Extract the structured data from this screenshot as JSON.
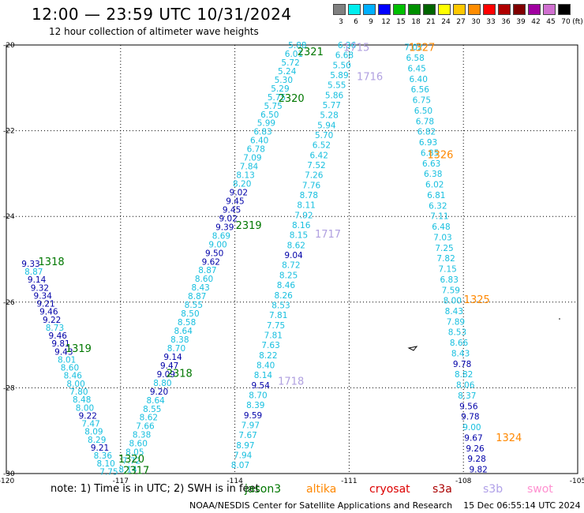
{
  "title": "12:00 — 23:59 UTC 10/31/2024",
  "subtitle": "12 hour collection of altimeter wave heights",
  "legend": {
    "unit": "(ft)",
    "bins": [
      {
        "label": "3",
        "color": "#808080"
      },
      {
        "label": "6",
        "color": "#00eeee"
      },
      {
        "label": "9",
        "color": "#00b0ff"
      },
      {
        "label": "12",
        "color": "#0000ff"
      },
      {
        "label": "15",
        "color": "#00c000"
      },
      {
        "label": "18",
        "color": "#009000"
      },
      {
        "label": "21",
        "color": "#006400"
      },
      {
        "label": "24",
        "color": "#ffff00"
      },
      {
        "label": "27",
        "color": "#ffc800"
      },
      {
        "label": "30",
        "color": "#ff8c00"
      },
      {
        "label": "33",
        "color": "#ff0000"
      },
      {
        "label": "36",
        "color": "#b00000"
      },
      {
        "label": "39",
        "color": "#800000"
      },
      {
        "label": "42",
        "color": "#a000a0"
      },
      {
        "label": "45",
        "color": "#d070d0"
      },
      {
        "label": "70",
        "color": "#000000"
      }
    ]
  },
  "colors": {
    "cyan": "#17bfdf",
    "blue": "#0000a8",
    "green": "#007700",
    "orange": "#ff8800",
    "lavender": "#b0a0e0",
    "red": "#dd0000",
    "darkred": "#aa0000",
    "s3b": "#b0a0e8",
    "swot": "#ff90d0"
  },
  "axes": {
    "lon_min": -120,
    "lon_max": -105,
    "lat_min": -30,
    "lat_max": -20,
    "x_ticks": [
      "-120",
      "-117",
      "-114",
      "-111",
      "-108",
      "-105"
    ],
    "y_ticks": [
      "-20",
      "-22",
      "-24",
      "-26",
      "-28",
      "-30"
    ],
    "grid": true
  },
  "footnote": "note:  1) Time is in UTC; 2) SWH is in feet",
  "satellites": [
    {
      "name": "jason3",
      "color": "#007700"
    },
    {
      "name": "altika",
      "color": "#ff8800"
    },
    {
      "name": "cryosat",
      "color": "#dd0000"
    },
    {
      "name": "s3a",
      "color": "#aa0000"
    },
    {
      "name": "s3b",
      "color": "#b0a0e8"
    },
    {
      "name": "swot",
      "color": "#ff90d0"
    }
  ],
  "credit": "NOAA/NESDIS Center for Satellite Applications and Research    15 Dec 06:55:14 UTC 2024",
  "map_data": {
    "pass_labels": [
      {
        "text": "1318",
        "lon": -119.16,
        "lat": -25.05,
        "color": "green"
      },
      {
        "text": "1319",
        "lon": -118.45,
        "lat": -27.07,
        "color": "green"
      },
      {
        "text": "1320",
        "lon": -117.06,
        "lat": -29.65,
        "color": "green"
      },
      {
        "text": "2317",
        "lon": -116.93,
        "lat": -29.92,
        "color": "green"
      },
      {
        "text": "2318",
        "lon": -115.8,
        "lat": -27.65,
        "color": "green"
      },
      {
        "text": "2319",
        "lon": -113.98,
        "lat": -24.2,
        "color": "green"
      },
      {
        "text": "2320",
        "lon": -112.86,
        "lat": -21.23,
        "color": "green"
      },
      {
        "text": "2321",
        "lon": -112.36,
        "lat": -20.15,
        "color": "green"
      },
      {
        "text": "1715",
        "lon": -111.15,
        "lat": -20.05,
        "color": "lavender"
      },
      {
        "text": "1716",
        "lon": -110.8,
        "lat": -20.73,
        "color": "lavender"
      },
      {
        "text": "1717",
        "lon": -111.9,
        "lat": -24.4,
        "color": "lavender"
      },
      {
        "text": "1718",
        "lon": -112.87,
        "lat": -27.84,
        "color": "lavender"
      },
      {
        "text": "1327",
        "lon": -109.43,
        "lat": -20.05,
        "color": "orange"
      },
      {
        "text": "1326",
        "lon": -108.95,
        "lat": -22.55,
        "color": "orange"
      },
      {
        "text": "1325",
        "lon": -107.99,
        "lat": -25.93,
        "color": "orange"
      },
      {
        "text": "1324",
        "lon": -107.15,
        "lat": -29.15,
        "color": "orange"
      }
    ],
    "tracks": [
      {
        "name": "track-1318-1320",
        "start": {
          "lon": -119.6,
          "lat": -25.1
        },
        "end": {
          "lon": -117.55,
          "lat": -29.95
        },
        "values": [
          {
            "v": "9.33",
            "c": "blue"
          },
          {
            "v": "8.87",
            "c": "cyan"
          },
          {
            "v": "9.14",
            "c": "blue"
          },
          {
            "v": "9.32",
            "c": "blue"
          },
          {
            "v": "9.34",
            "c": "blue"
          },
          {
            "v": "9.21",
            "c": "blue"
          },
          {
            "v": "9.46",
            "c": "blue"
          },
          {
            "v": "9.22",
            "c": "blue"
          },
          {
            "v": "8.73",
            "c": "cyan"
          },
          {
            "v": "9.46",
            "c": "blue"
          },
          {
            "v": "9.81",
            "c": "blue"
          },
          {
            "v": "9.43",
            "c": "blue"
          },
          {
            "v": "8.01",
            "c": "cyan"
          },
          {
            "v": "8.60",
            "c": "cyan"
          },
          {
            "v": "8.46",
            "c": "cyan"
          },
          {
            "v": "8.00",
            "c": "cyan"
          },
          {
            "v": "7.80",
            "c": "cyan"
          },
          {
            "v": "8.48",
            "c": "cyan"
          },
          {
            "v": "8.00",
            "c": "cyan"
          },
          {
            "v": "9.22",
            "c": "blue"
          },
          {
            "v": "7.47",
            "c": "cyan"
          },
          {
            "v": "8.09",
            "c": "cyan"
          },
          {
            "v": "8.29",
            "c": "cyan"
          },
          {
            "v": "9.21",
            "c": "blue"
          },
          {
            "v": "8.36",
            "c": "cyan"
          },
          {
            "v": "8.10",
            "c": "cyan"
          },
          {
            "v": "7.75",
            "c": "cyan"
          }
        ]
      },
      {
        "name": "track-2317-2321",
        "start": {
          "lon": -117.05,
          "lat": -29.9
        },
        "end": {
          "lon": -112.6,
          "lat": -20.0
        },
        "values": [
          {
            "v": "8.14",
            "c": "cyan"
          },
          {
            "v": "7.72",
            "c": "cyan"
          },
          {
            "v": "8.05",
            "c": "cyan"
          },
          {
            "v": "8.60",
            "c": "cyan"
          },
          {
            "v": "8.38",
            "c": "cyan"
          },
          {
            "v": "7.66",
            "c": "cyan"
          },
          {
            "v": "8.62",
            "c": "cyan"
          },
          {
            "v": "8.55",
            "c": "cyan"
          },
          {
            "v": "8.64",
            "c": "cyan"
          },
          {
            "v": "9.20",
            "c": "blue"
          },
          {
            "v": "8.80",
            "c": "cyan"
          },
          {
            "v": "9.09",
            "c": "blue"
          },
          {
            "v": "9.47",
            "c": "blue"
          },
          {
            "v": "9.14",
            "c": "blue"
          },
          {
            "v": "8.70",
            "c": "cyan"
          },
          {
            "v": "8.38",
            "c": "cyan"
          },
          {
            "v": "8.64",
            "c": "cyan"
          },
          {
            "v": "8.58",
            "c": "cyan"
          },
          {
            "v": "8.50",
            "c": "cyan"
          },
          {
            "v": "8.55",
            "c": "cyan"
          },
          {
            "v": "8.87",
            "c": "cyan"
          },
          {
            "v": "8.43",
            "c": "cyan"
          },
          {
            "v": "8.60",
            "c": "cyan"
          },
          {
            "v": "8.87",
            "c": "cyan"
          },
          {
            "v": "9.62",
            "c": "blue"
          },
          {
            "v": "9.50",
            "c": "blue"
          },
          {
            "v": "9.00",
            "c": "cyan"
          },
          {
            "v": "8.69",
            "c": "cyan"
          },
          {
            "v": "9.39",
            "c": "blue"
          },
          {
            "v": "9.02",
            "c": "blue"
          },
          {
            "v": "9.45",
            "c": "blue"
          },
          {
            "v": "9.45",
            "c": "blue"
          },
          {
            "v": "9.02",
            "c": "blue"
          },
          {
            "v": "8.20",
            "c": "cyan"
          },
          {
            "v": "8.13",
            "c": "cyan"
          },
          {
            "v": "7.84",
            "c": "cyan"
          },
          {
            "v": "7.09",
            "c": "cyan"
          },
          {
            "v": "6.78",
            "c": "cyan"
          },
          {
            "v": "6.40",
            "c": "cyan"
          },
          {
            "v": "6.83",
            "c": "cyan"
          },
          {
            "v": "5.99",
            "c": "cyan"
          },
          {
            "v": "6.50",
            "c": "cyan"
          },
          {
            "v": "5.75",
            "c": "cyan"
          },
          {
            "v": "5.75",
            "c": "cyan"
          },
          {
            "v": "5.29",
            "c": "cyan"
          },
          {
            "v": "5.30",
            "c": "cyan"
          },
          {
            "v": "5.24",
            "c": "cyan"
          },
          {
            "v": "5.72",
            "c": "cyan"
          },
          {
            "v": "6.01",
            "c": "cyan"
          },
          {
            "v": "5.88",
            "c": "cyan"
          }
        ]
      },
      {
        "name": "track-1715-1718",
        "start": {
          "lon": -111.3,
          "lat": -20.0
        },
        "end": {
          "lon": -114.1,
          "lat": -29.8
        },
        "values": [
          {
            "v": "6.36",
            "c": "cyan"
          },
          {
            "v": "6.68",
            "c": "cyan"
          },
          {
            "v": "5.50",
            "c": "cyan"
          },
          {
            "v": "5.89",
            "c": "cyan"
          },
          {
            "v": "5.55",
            "c": "cyan"
          },
          {
            "v": "5.86",
            "c": "cyan"
          },
          {
            "v": "5.77",
            "c": "cyan"
          },
          {
            "v": "5.28",
            "c": "cyan"
          },
          {
            "v": "5.94",
            "c": "cyan"
          },
          {
            "v": "5.70",
            "c": "cyan"
          },
          {
            "v": "6.52",
            "c": "cyan"
          },
          {
            "v": "6.42",
            "c": "cyan"
          },
          {
            "v": "7.52",
            "c": "cyan"
          },
          {
            "v": "7.26",
            "c": "cyan"
          },
          {
            "v": "7.76",
            "c": "cyan"
          },
          {
            "v": "8.78",
            "c": "cyan"
          },
          {
            "v": "8.11",
            "c": "cyan"
          },
          {
            "v": "7.92",
            "c": "cyan"
          },
          {
            "v": "8.16",
            "c": "cyan"
          },
          {
            "v": "8.15",
            "c": "cyan"
          },
          {
            "v": "8.62",
            "c": "cyan"
          },
          {
            "v": "9.04",
            "c": "blue"
          },
          {
            "v": "8.72",
            "c": "cyan"
          },
          {
            "v": "8.25",
            "c": "cyan"
          },
          {
            "v": "8.46",
            "c": "cyan"
          },
          {
            "v": "8.26",
            "c": "cyan"
          },
          {
            "v": "8.53",
            "c": "cyan"
          },
          {
            "v": "7.81",
            "c": "cyan"
          },
          {
            "v": "7.75",
            "c": "cyan"
          },
          {
            "v": "7.81",
            "c": "cyan"
          },
          {
            "v": "7.63",
            "c": "cyan"
          },
          {
            "v": "8.22",
            "c": "cyan"
          },
          {
            "v": "8.40",
            "c": "cyan"
          },
          {
            "v": "8.14",
            "c": "cyan"
          },
          {
            "v": "9.54",
            "c": "blue"
          },
          {
            "v": "8.70",
            "c": "cyan"
          },
          {
            "v": "8.39",
            "c": "cyan"
          },
          {
            "v": "9.59",
            "c": "blue"
          },
          {
            "v": "7.97",
            "c": "cyan"
          },
          {
            "v": "7.67",
            "c": "cyan"
          },
          {
            "v": "8.97",
            "c": "cyan"
          },
          {
            "v": "7.94",
            "c": "cyan"
          },
          {
            "v": "8.07",
            "c": "cyan"
          }
        ]
      },
      {
        "name": "track-1324-1327",
        "start": {
          "lon": -109.55,
          "lat": -20.05
        },
        "end": {
          "lon": -107.85,
          "lat": -29.9
        },
        "values": [
          {
            "v": "7.02",
            "c": "cyan"
          },
          {
            "v": "6.58",
            "c": "cyan"
          },
          {
            "v": "6.45",
            "c": "cyan"
          },
          {
            "v": "6.40",
            "c": "cyan"
          },
          {
            "v": "6.56",
            "c": "cyan"
          },
          {
            "v": "6.75",
            "c": "cyan"
          },
          {
            "v": "6.50",
            "c": "cyan"
          },
          {
            "v": "6.78",
            "c": "cyan"
          },
          {
            "v": "6.82",
            "c": "cyan"
          },
          {
            "v": "6.93",
            "c": "cyan"
          },
          {
            "v": "6.85",
            "c": "cyan"
          },
          {
            "v": "6.63",
            "c": "cyan"
          },
          {
            "v": "6.38",
            "c": "cyan"
          },
          {
            "v": "6.02",
            "c": "cyan"
          },
          {
            "v": "6.81",
            "c": "cyan"
          },
          {
            "v": "6.32",
            "c": "cyan"
          },
          {
            "v": "7.11",
            "c": "cyan"
          },
          {
            "v": "6.48",
            "c": "cyan"
          },
          {
            "v": "7.03",
            "c": "cyan"
          },
          {
            "v": "7.25",
            "c": "cyan"
          },
          {
            "v": "7.82",
            "c": "cyan"
          },
          {
            "v": "7.15",
            "c": "cyan"
          },
          {
            "v": "6.83",
            "c": "cyan"
          },
          {
            "v": "7.59",
            "c": "cyan"
          },
          {
            "v": "8.00",
            "c": "cyan"
          },
          {
            "v": "8.43",
            "c": "cyan"
          },
          {
            "v": "7.89",
            "c": "cyan"
          },
          {
            "v": "8.53",
            "c": "cyan"
          },
          {
            "v": "8.66",
            "c": "cyan"
          },
          {
            "v": "8.43",
            "c": "cyan"
          },
          {
            "v": "9.78",
            "c": "blue"
          },
          {
            "v": "8.82",
            "c": "cyan"
          },
          {
            "v": "8.06",
            "c": "cyan"
          },
          {
            "v": "8.37",
            "c": "cyan"
          },
          {
            "v": "9.56",
            "c": "blue"
          },
          {
            "v": "9.78",
            "c": "blue"
          },
          {
            "v": "9.00",
            "c": "cyan"
          },
          {
            "v": "9.67",
            "c": "blue"
          },
          {
            "v": "9.26",
            "c": "blue"
          },
          {
            "v": "9.28",
            "c": "blue"
          },
          {
            "v": "9.82",
            "c": "blue"
          }
        ]
      }
    ]
  }
}
